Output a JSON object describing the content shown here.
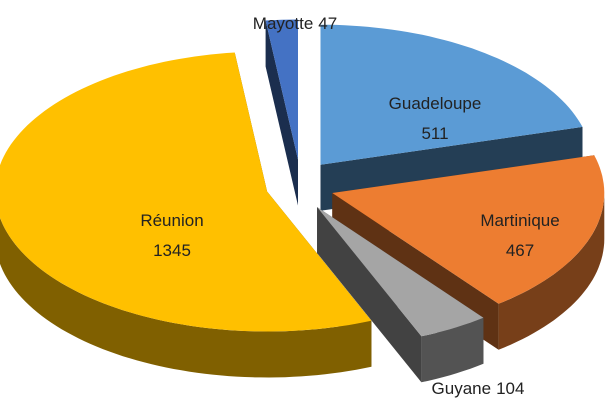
{
  "chart_data": {
    "type": "pie",
    "categories": [
      "Guadeloupe",
      "Martinique",
      "Guyane",
      "Réunion",
      "Mayotte"
    ],
    "values": [
      511,
      467,
      104,
      1345,
      47
    ],
    "colors": [
      "#5b9bd5",
      "#ed7d31",
      "#a5a5a5",
      "#ffc000",
      "#4472c4"
    ]
  }
}
